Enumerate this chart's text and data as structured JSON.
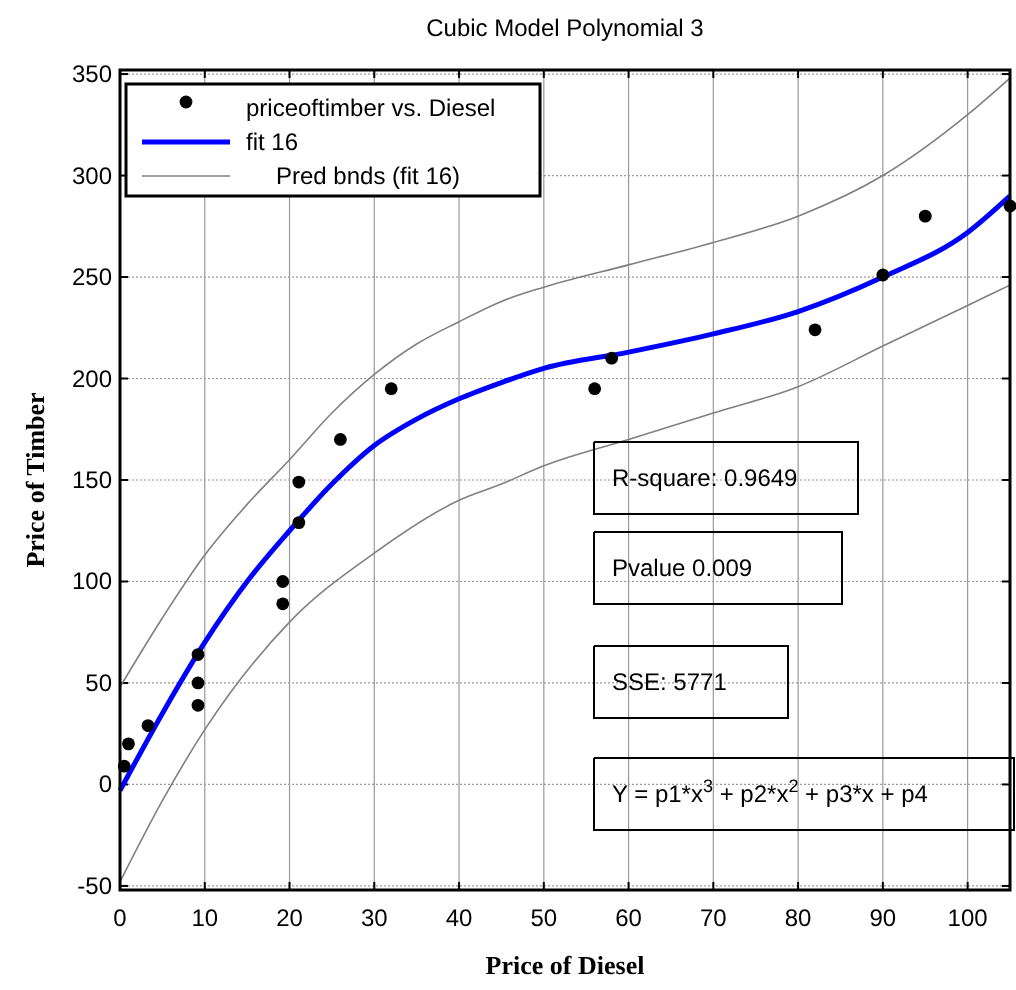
{
  "chart_data": {
    "type": "scatter",
    "title": "Cubic Model Polynomial 3",
    "xlabel": "Price of Diesel",
    "ylabel": "Price of Timber",
    "xlim": [
      0,
      105
    ],
    "ylim": [
      -52,
      352
    ],
    "xticks": [
      0,
      10,
      20,
      30,
      40,
      50,
      60,
      70,
      80,
      90,
      100
    ],
    "yticks": [
      -50,
      0,
      50,
      100,
      150,
      200,
      250,
      300,
      350
    ],
    "grid": true,
    "legend": "top left",
    "annotations": [
      "R-square: 0.9649",
      "Pvalue 0.009",
      "SSE: 5771",
      "Y = p1*x$^{3}$ + p2*x$^{2}$ + p3*x + p4"
    ],
    "series": [
      {
        "name": "priceoftimber vs. Diesel",
        "marker": "circle",
        "color": "#000000",
        "x": [
          0.5,
          1,
          3.3,
          9.2,
          9.2,
          9.2,
          19.2,
          19.2,
          21.1,
          21.1,
          26,
          32,
          56,
          58,
          82,
          90,
          95,
          105
        ],
        "values": [
          9,
          20,
          29,
          64,
          50,
          39,
          100,
          89,
          129,
          149,
          170,
          195,
          195,
          210,
          224,
          251,
          280,
          285
        ]
      },
      {
        "name": "fit 16",
        "type": "line",
        "marker": "none",
        "color": "#0000ff",
        "x": [
          0,
          5,
          10,
          15,
          20,
          25,
          30,
          35,
          40,
          45,
          50,
          60,
          70,
          80,
          90,
          100,
          105
        ],
        "values": [
          -3,
          35,
          70,
          100,
          125,
          148,
          167,
          180,
          190,
          198,
          205,
          213,
          222,
          233,
          250,
          272,
          290
        ]
      },
      {
        "name": "Pred bnds (fit 16)",
        "type": "line",
        "marker": "none",
        "color": "#808080",
        "x": [
          0,
          5,
          10,
          15,
          20,
          25,
          30,
          35,
          40,
          45,
          50,
          60,
          70,
          80,
          90,
          100,
          105
        ],
        "values": [
          48,
          82,
          113,
          138,
          160,
          183,
          202,
          217,
          228,
          238,
          245,
          256,
          267,
          280,
          300,
          330,
          348
        ]
      },
      {
        "type": "line",
        "marker": "none",
        "color": "#808080",
        "x": [
          0,
          5,
          10,
          20,
          30,
          40,
          45,
          50,
          60,
          70,
          80,
          90,
          100,
          105
        ],
        "values": [
          -48,
          -8,
          27,
          80,
          114,
          140,
          148,
          157,
          170,
          183,
          196,
          216,
          236,
          246
        ]
      }
    ]
  }
}
